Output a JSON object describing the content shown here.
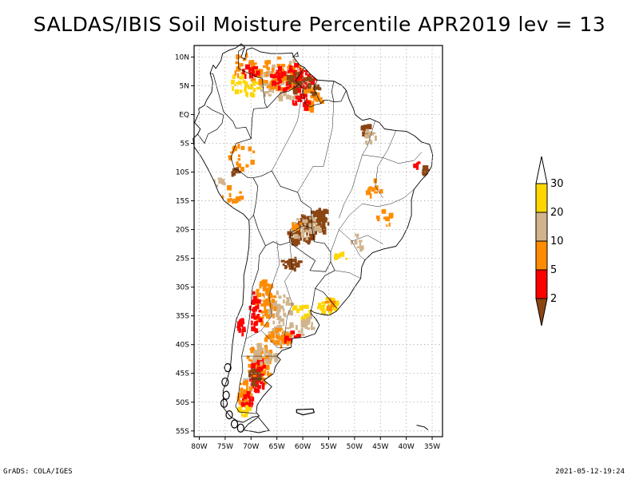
{
  "title": "SALDAS/IBIS Soil Moisture Percentile APR2019 lev = 13",
  "footer": {
    "left": "GrADS: COLA/IGES",
    "right": "2021-05-12-19:24"
  },
  "map": {
    "lon_range": [
      -81,
      -33
    ],
    "lat_range": [
      -56,
      12
    ],
    "lon_ticks": [
      {
        "v": -80,
        "label": "80W"
      },
      {
        "v": -75,
        "label": "75W"
      },
      {
        "v": -70,
        "label": "70W"
      },
      {
        "v": -65,
        "label": "65W"
      },
      {
        "v": -60,
        "label": "60W"
      },
      {
        "v": -55,
        "label": "55W"
      },
      {
        "v": -50,
        "label": "50W"
      },
      {
        "v": -45,
        "label": "45W"
      },
      {
        "v": -40,
        "label": "40W"
      },
      {
        "v": -35,
        "label": "35W"
      }
    ],
    "lat_ticks": [
      {
        "v": 10,
        "label": "10N"
      },
      {
        "v": 5,
        "label": "5N"
      },
      {
        "v": 0,
        "label": "EQ"
      },
      {
        "v": -5,
        "label": "5S"
      },
      {
        "v": -10,
        "label": "10S"
      },
      {
        "v": -15,
        "label": "15S"
      },
      {
        "v": -20,
        "label": "20S"
      },
      {
        "v": -25,
        "label": "25S"
      },
      {
        "v": -30,
        "label": "30S"
      },
      {
        "v": -35,
        "label": "35S"
      },
      {
        "v": -40,
        "label": "40S"
      },
      {
        "v": -45,
        "label": "45S"
      },
      {
        "v": -50,
        "label": "50S"
      },
      {
        "v": -55,
        "label": "55S"
      }
    ]
  },
  "legend": {
    "entries": [
      {
        "label": "2",
        "color": "#8b4513"
      },
      {
        "label": "5",
        "color": "#ff0000"
      },
      {
        "label": "10",
        "color": "#ff8c00"
      },
      {
        "label": "20",
        "color": "#d2b48c"
      },
      {
        "label": "30",
        "color": "#ffd700"
      }
    ],
    "low_color": "#8b4513",
    "high_color": "#ffffff"
  },
  "colors": {
    "brown": "#8b4513",
    "red": "#ff0000",
    "orange": "#ff8c00",
    "tan": "#d2b48c",
    "gold": "#ffd700"
  }
}
